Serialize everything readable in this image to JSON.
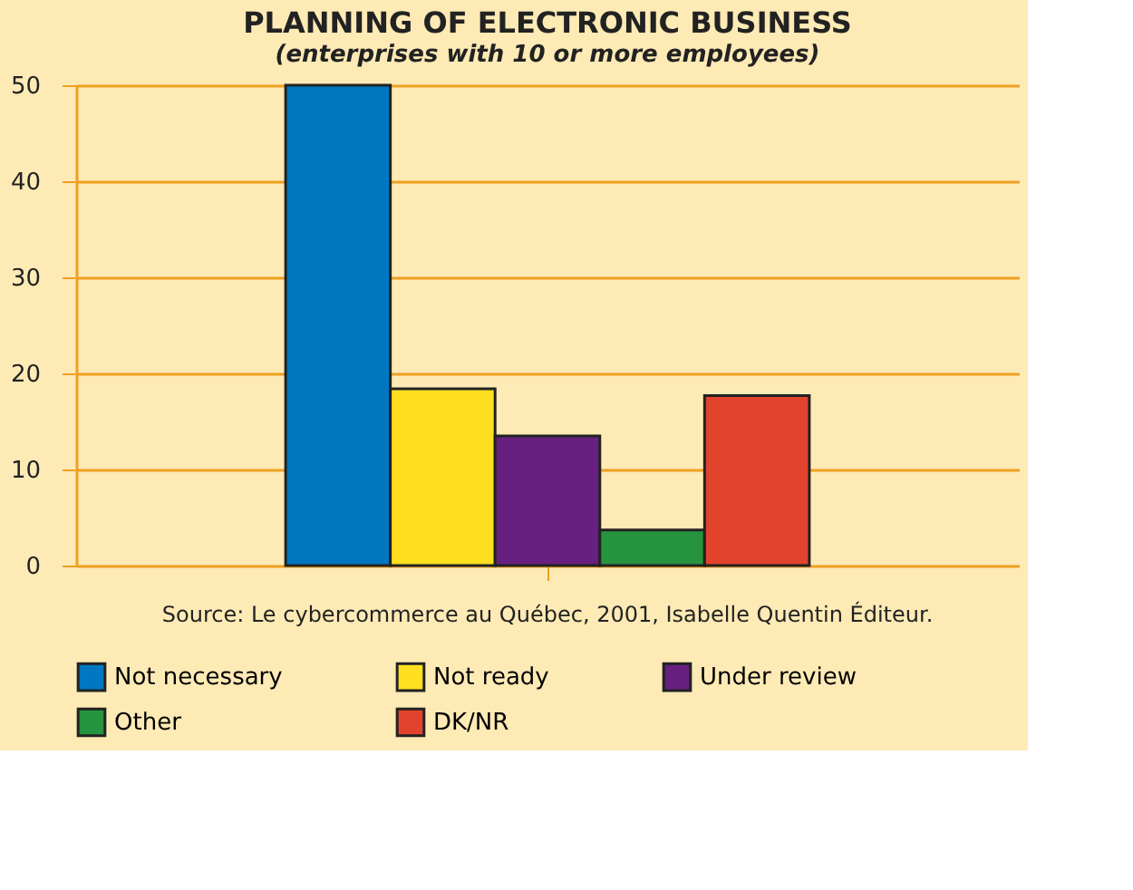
{
  "chart_data": {
    "type": "bar",
    "title": "PLANNING OF ELECTRONIC BUSINESS",
    "subtitle": "(enterprises with 10 or more employees)",
    "categories": [
      null
    ],
    "series": [
      {
        "name": "Not necessary",
        "color": "#0077c0",
        "values": [
          50
        ]
      },
      {
        "name": "Not ready",
        "color": "#ffe020",
        "values": [
          18.4
        ]
      },
      {
        "name": "Under review",
        "color": "#67207f",
        "values": [
          13.5
        ]
      },
      {
        "name": "Other",
        "color": "#26943f",
        "values": [
          3.7
        ]
      },
      {
        "name": "DK/NR",
        "color": "#e2432c",
        "values": [
          17.7
        ]
      }
    ],
    "ylim": [
      0,
      50
    ],
    "yticks": [
      0,
      10,
      20,
      30,
      40,
      50
    ],
    "grid": "y",
    "legend": "bottom",
    "tick_labels": "y",
    "annotations": [
      "Source: Le cybercommerce au Québec, 2001, Isabelle Quentin Éditeur."
    ]
  }
}
